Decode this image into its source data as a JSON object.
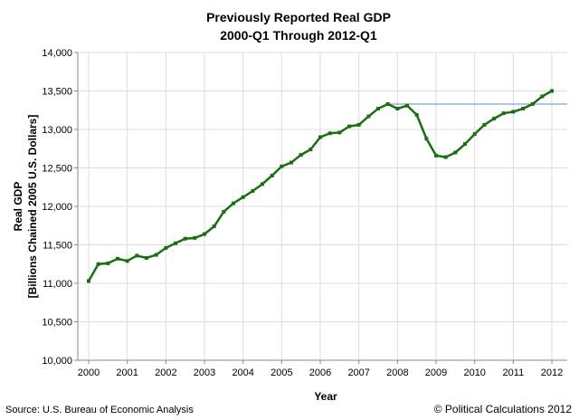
{
  "chart_data": {
    "type": "line",
    "title": "Previously Reported Real GDP",
    "subtitle": "2000-Q1 Through 2012-Q1",
    "xlabel": "Year",
    "ylabel": "Real GDP",
    "ylabel2": "[Billions Chained 2005 U.S. Dollars]",
    "ylim": [
      10000,
      14000
    ],
    "yticks": [
      "10,000",
      "10,500",
      "11,000",
      "11,500",
      "12,000",
      "12,500",
      "13,000",
      "13,500",
      "14,000"
    ],
    "xticks": [
      "2000",
      "2001",
      "2002",
      "2003",
      "2004",
      "2005",
      "2006",
      "2007",
      "2008",
      "2009",
      "2010",
      "2011",
      "2012"
    ],
    "grid": true,
    "series": [
      {
        "color": "#1a6e12",
        "x_start": "2000-Q1",
        "values": [
          11030,
          11250,
          11260,
          11320,
          11290,
          11360,
          11330,
          11370,
          11460,
          11520,
          11580,
          11590,
          11640,
          11740,
          11930,
          12040,
          12120,
          12200,
          12290,
          12400,
          12520,
          12570,
          12670,
          12740,
          12900,
          12950,
          12960,
          13040,
          13060,
          13170,
          13270,
          13330,
          13270,
          13310,
          13190,
          12880,
          12660,
          12640,
          12700,
          12810,
          12940,
          13060,
          13140,
          13210,
          13230,
          13270,
          13330,
          13430,
          13500
        ]
      }
    ],
    "reference_line": {
      "value": 13330,
      "from": "2007-Q4",
      "color": "#5b8fd6"
    }
  },
  "footer": {
    "source": "Source: U.S. Bureau of Economic Analysis",
    "credit": "© Political Calculations 2012"
  }
}
